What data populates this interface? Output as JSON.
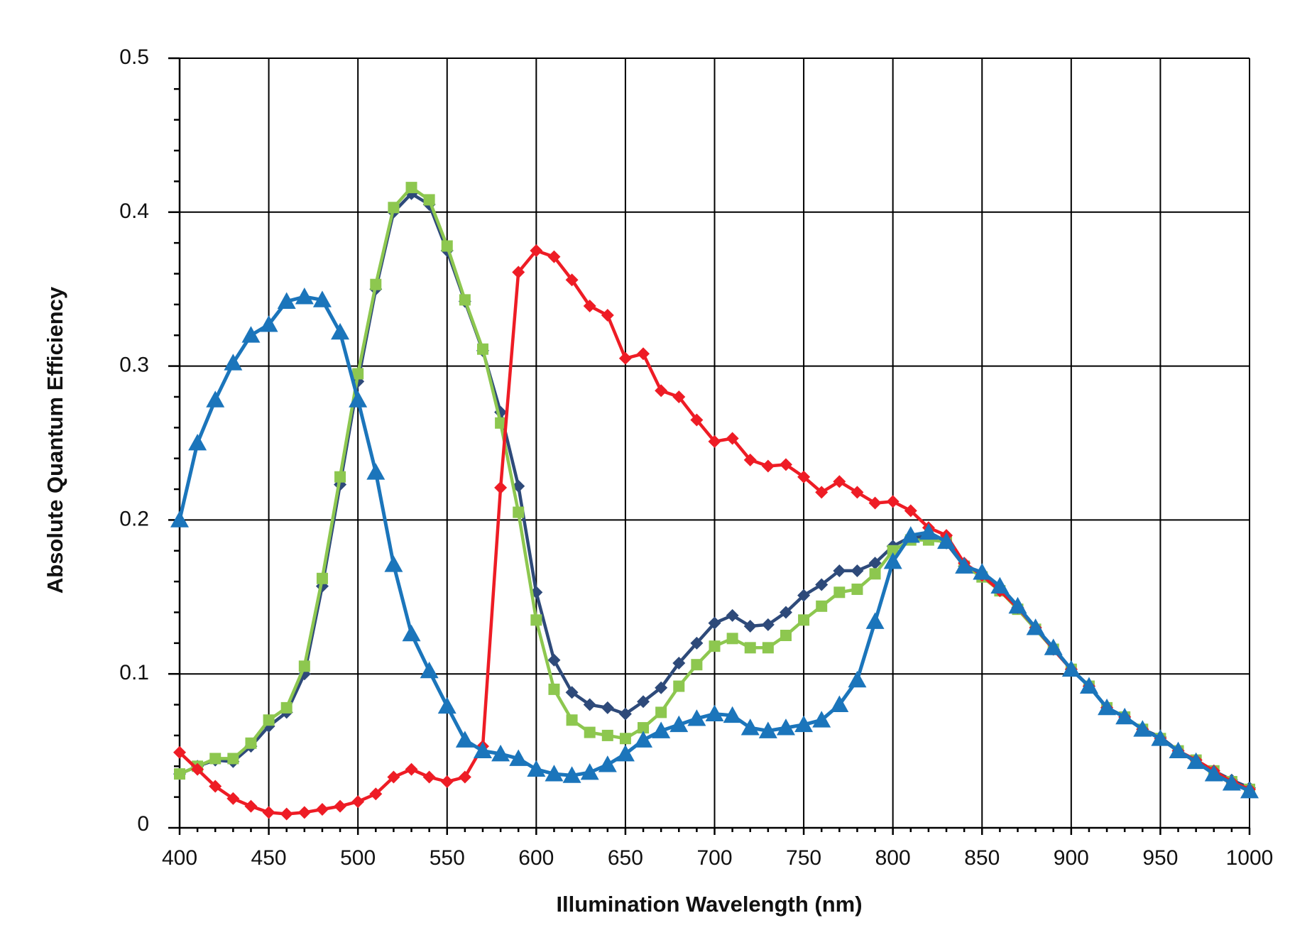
{
  "chart_data": {
    "type": "line",
    "title": "",
    "xlabel": "Illumination Wavelength (nm)",
    "ylabel": "Absolute Quantum Efficiency",
    "xlim": [
      400,
      1000
    ],
    "ylim": [
      0,
      0.5
    ],
    "grid": true,
    "x_ticks": [
      "400",
      "450",
      "500",
      "550",
      "600",
      "650",
      "700",
      "750",
      "800",
      "850",
      "900",
      "950",
      "1000"
    ],
    "y_ticks": [
      "0",
      "0.1",
      "0.2",
      "0.3",
      "0.4",
      "0.5"
    ],
    "x": [
      400,
      410,
      420,
      430,
      440,
      450,
      460,
      470,
      480,
      490,
      500,
      510,
      520,
      530,
      540,
      550,
      560,
      570,
      580,
      590,
      600,
      610,
      620,
      630,
      640,
      650,
      660,
      670,
      680,
      690,
      700,
      710,
      720,
      730,
      740,
      750,
      760,
      770,
      780,
      790,
      800,
      810,
      820,
      830,
      840,
      850,
      860,
      870,
      880,
      890,
      900,
      910,
      920,
      930,
      940,
      950,
      960,
      970,
      980,
      990,
      1000
    ],
    "series": [
      {
        "color": "#2e4a7a",
        "marker": "diamond",
        "values": [
          0.035,
          0.04,
          0.044,
          0.043,
          0.053,
          0.066,
          0.075,
          0.1,
          0.157,
          0.223,
          0.29,
          0.35,
          0.4,
          0.412,
          0.405,
          0.375,
          0.342,
          0.31,
          0.27,
          0.222,
          0.153,
          0.109,
          0.088,
          0.08,
          0.078,
          0.074,
          0.082,
          0.091,
          0.107,
          0.12,
          0.133,
          0.138,
          0.131,
          0.132,
          0.14,
          0.151,
          0.158,
          0.167,
          0.167,
          0.172,
          0.183,
          0.189,
          0.189,
          0.185,
          0.17,
          0.164,
          0.154,
          0.143,
          0.13,
          0.116,
          0.103,
          0.092,
          0.078,
          0.072,
          0.064,
          0.059,
          0.05,
          0.044,
          0.037,
          0.031,
          0.026
        ]
      },
      {
        "color": "#8dc74f",
        "marker": "square",
        "values": [
          0.035,
          0.04,
          0.045,
          0.045,
          0.055,
          0.07,
          0.078,
          0.105,
          0.162,
          0.228,
          0.295,
          0.353,
          0.403,
          0.416,
          0.408,
          0.378,
          0.343,
          0.311,
          0.263,
          0.205,
          0.135,
          0.09,
          0.07,
          0.062,
          0.06,
          0.058,
          0.065,
          0.075,
          0.092,
          0.106,
          0.118,
          0.123,
          0.117,
          0.117,
          0.125,
          0.135,
          0.144,
          0.153,
          0.155,
          0.165,
          0.18,
          0.187,
          0.187,
          0.186,
          0.17,
          0.163,
          0.154,
          0.142,
          0.129,
          0.116,
          0.103,
          0.092,
          0.078,
          0.072,
          0.064,
          0.058,
          0.05,
          0.044,
          0.037,
          0.03,
          0.025
        ]
      },
      {
        "color": "#ee1c25",
        "marker": "diamond",
        "values": [
          0.049,
          0.038,
          0.027,
          0.019,
          0.014,
          0.01,
          0.009,
          0.01,
          0.012,
          0.014,
          0.017,
          0.022,
          0.033,
          0.038,
          0.033,
          0.03,
          0.033,
          0.053,
          0.221,
          0.361,
          0.375,
          0.371,
          0.356,
          0.339,
          0.333,
          0.305,
          0.308,
          0.284,
          0.28,
          0.265,
          0.251,
          0.253,
          0.239,
          0.235,
          0.236,
          0.228,
          0.218,
          0.225,
          0.218,
          0.211,
          0.212,
          0.206,
          0.195,
          0.19,
          0.172,
          0.164,
          0.154,
          0.143,
          0.13,
          0.116,
          0.103,
          0.092,
          0.078,
          0.072,
          0.064,
          0.058,
          0.05,
          0.044,
          0.037,
          0.03,
          0.025
        ]
      },
      {
        "color": "#1b75bb",
        "marker": "triangle",
        "values": [
          0.2,
          0.25,
          0.278,
          0.302,
          0.32,
          0.327,
          0.342,
          0.345,
          0.343,
          0.322,
          0.278,
          0.231,
          0.171,
          0.126,
          0.102,
          0.079,
          0.057,
          0.05,
          0.048,
          0.045,
          0.038,
          0.035,
          0.034,
          0.036,
          0.041,
          0.048,
          0.057,
          0.063,
          0.067,
          0.071,
          0.074,
          0.073,
          0.065,
          0.063,
          0.065,
          0.067,
          0.07,
          0.08,
          0.096,
          0.134,
          0.173,
          0.19,
          0.192,
          0.186,
          0.17,
          0.166,
          0.157,
          0.144,
          0.13,
          0.117,
          0.103,
          0.092,
          0.078,
          0.072,
          0.064,
          0.058,
          0.05,
          0.043,
          0.035,
          0.029,
          0.024
        ]
      }
    ]
  }
}
